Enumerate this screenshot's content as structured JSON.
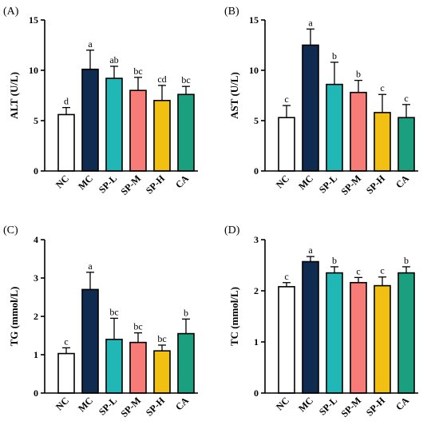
{
  "chart_data": [
    {
      "type": "bar",
      "panel": "(A)",
      "ylabel": "ALT (U/L)",
      "ylim": [
        0,
        15
      ],
      "yticks": [
        "0",
        "5",
        "10",
        "15"
      ],
      "categories": [
        "NC",
        "MC",
        "SP-L",
        "SP-M",
        "SP-H",
        "CA"
      ],
      "values": [
        5.6,
        10.1,
        9.2,
        8.0,
        7.0,
        7.6
      ],
      "errors": [
        0.7,
        1.9,
        1.2,
        1.3,
        1.5,
        0.8
      ],
      "letters": [
        "d",
        "a",
        "ab",
        "bc",
        "cd",
        "bc"
      ]
    },
    {
      "type": "bar",
      "panel": "(B)",
      "ylabel": "AST (U/L)",
      "ylim": [
        0,
        15
      ],
      "yticks": [
        "0",
        "5",
        "10",
        "15"
      ],
      "categories": [
        "NC",
        "MC",
        "SP-L",
        "SP-M",
        "SP-H",
        "CA"
      ],
      "values": [
        5.3,
        12.5,
        8.6,
        7.8,
        5.8,
        5.3
      ],
      "errors": [
        1.2,
        1.6,
        2.2,
        1.2,
        1.8,
        1.3
      ],
      "letters": [
        "c",
        "a",
        "b",
        "b",
        "c",
        "c"
      ]
    },
    {
      "type": "bar",
      "panel": "(C)",
      "ylabel": "TG (mmol/L)",
      "ylim": [
        0,
        4
      ],
      "yticks": [
        "0",
        "1",
        "2",
        "3",
        "4"
      ],
      "categories": [
        "NC",
        "MC",
        "SP-L",
        "SP-M",
        "SP-H",
        "CA"
      ],
      "values": [
        1.03,
        2.7,
        1.4,
        1.32,
        1.1,
        1.55
      ],
      "errors": [
        0.15,
        0.45,
        0.55,
        0.25,
        0.15,
        0.38
      ],
      "letters": [
        "c",
        "a",
        "bc",
        "bc",
        "bc",
        "b"
      ]
    },
    {
      "type": "bar",
      "panel": "(D)",
      "ylabel": "TC (mmol/L)",
      "ylim": [
        0,
        3
      ],
      "yticks": [
        "0",
        "1",
        "2",
        "3"
      ],
      "categories": [
        "NC",
        "MC",
        "SP-L",
        "SP-M",
        "SP-H",
        "CA"
      ],
      "values": [
        2.08,
        2.57,
        2.35,
        2.16,
        2.1,
        2.35
      ],
      "errors": [
        0.08,
        0.1,
        0.12,
        0.1,
        0.17,
        0.12
      ],
      "letters": [
        "c",
        "a",
        "b",
        "c",
        "c",
        "b"
      ]
    }
  ],
  "colors": {
    "fills": [
      "#ffffff",
      "#0f2b4f",
      "#22b7b7",
      "#f77c78",
      "#f2c013",
      "#1aa07f"
    ],
    "axis": "#000000"
  }
}
